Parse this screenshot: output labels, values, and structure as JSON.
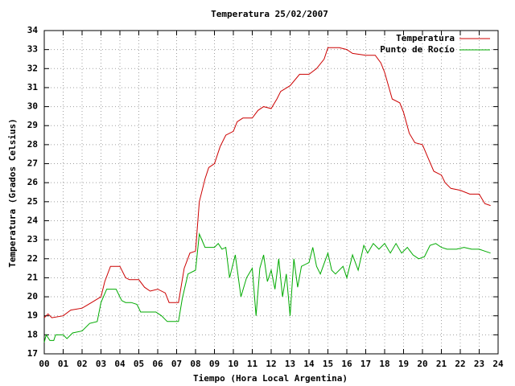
{
  "chart_data": {
    "type": "line",
    "title": "Temperatura 25/02/2007",
    "x_label": "Tiempo (Hora Local Argentina)",
    "y_label": "Temperatura (Grados Celsius)",
    "xlim": [
      0,
      24
    ],
    "ylim": [
      17,
      34
    ],
    "xticks": [
      {
        "value": 0,
        "label": "00"
      },
      {
        "value": 1,
        "label": "01"
      },
      {
        "value": 2,
        "label": "02"
      },
      {
        "value": 3,
        "label": "03"
      },
      {
        "value": 4,
        "label": "04"
      },
      {
        "value": 5,
        "label": "05"
      },
      {
        "value": 6,
        "label": "06"
      },
      {
        "value": 7,
        "label": "07"
      },
      {
        "value": 8,
        "label": "08"
      },
      {
        "value": 9,
        "label": "09"
      },
      10,
      11,
      12,
      13,
      14,
      15,
      16,
      17,
      18,
      19,
      20,
      21,
      22,
      23,
      24
    ],
    "yticks": [
      17,
      18,
      19,
      20,
      21,
      22,
      23,
      24,
      25,
      26,
      27,
      28,
      29,
      30,
      31,
      32,
      33,
      34
    ],
    "grid": true,
    "legend": "top-right",
    "series": [
      {
        "name": "Temperatura",
        "color": "#cc0000",
        "x": [
          0,
          0.2,
          0.4,
          1.0,
          1.4,
          2.0,
          2.5,
          3.0,
          3.2,
          3.5,
          4.0,
          4.3,
          4.5,
          5.0,
          5.3,
          5.6,
          6.0,
          6.4,
          6.6,
          7.1,
          7.4,
          7.7,
          8.0,
          8.2,
          8.5,
          8.7,
          9.0,
          9.3,
          9.6,
          10.0,
          10.2,
          10.5,
          11.0,
          11.3,
          11.6,
          12.0,
          12.3,
          12.5,
          13.0,
          13.5,
          14.0,
          14.4,
          14.8,
          15.0,
          15.3,
          15.6,
          16.0,
          16.3,
          17.0,
          17.5,
          17.8,
          18.0,
          18.4,
          18.8,
          19.0,
          19.3,
          19.6,
          20.0,
          20.3,
          20.6,
          21.0,
          21.2,
          21.5,
          22.0,
          22.5,
          23.0,
          23.3,
          23.6
        ],
        "values": [
          18.9,
          19.1,
          18.9,
          19.0,
          19.3,
          19.4,
          19.7,
          20.0,
          20.8,
          21.6,
          21.6,
          21.0,
          20.9,
          20.9,
          20.5,
          20.3,
          20.4,
          20.2,
          19.7,
          19.7,
          21.5,
          22.3,
          22.4,
          25.0,
          26.2,
          26.8,
          27.0,
          27.9,
          28.5,
          28.7,
          29.2,
          29.4,
          29.4,
          29.8,
          30.0,
          29.9,
          30.4,
          30.8,
          31.1,
          31.7,
          31.7,
          32.0,
          32.5,
          33.1,
          33.1,
          33.1,
          33.0,
          32.8,
          32.7,
          32.7,
          32.3,
          31.8,
          30.4,
          30.2,
          29.7,
          28.6,
          28.1,
          28.0,
          27.3,
          26.6,
          26.4,
          26.0,
          25.7,
          25.6,
          25.4,
          25.4,
          24.9,
          24.8
        ]
      },
      {
        "name": "Punto de Rocío",
        "color": "#00aa00",
        "x": [
          0,
          0.1,
          0.3,
          0.5,
          0.6,
          1.0,
          1.2,
          1.5,
          2.0,
          2.4,
          2.8,
          3.0,
          3.3,
          3.8,
          4.1,
          4.3,
          4.6,
          4.9,
          5.1,
          5.5,
          5.9,
          6.2,
          6.5,
          7.1,
          7.3,
          7.6,
          8.0,
          8.2,
          8.5,
          9.0,
          9.2,
          9.4,
          9.6,
          9.8,
          10.1,
          10.4,
          10.7,
          11.0,
          11.2,
          11.4,
          11.6,
          11.8,
          12.0,
          12.2,
          12.4,
          12.6,
          12.8,
          13.0,
          13.2,
          13.4,
          13.6,
          14.0,
          14.2,
          14.4,
          14.6,
          15.0,
          15.2,
          15.4,
          15.8,
          16.0,
          16.3,
          16.6,
          16.9,
          17.1,
          17.4,
          17.7,
          18.0,
          18.3,
          18.6,
          18.9,
          19.2,
          19.5,
          19.8,
          20.1,
          20.4,
          20.7,
          21.0,
          21.3,
          21.8,
          22.2,
          22.6,
          23.0,
          23.3,
          23.6
        ],
        "values": [
          17.6,
          18.0,
          17.7,
          17.7,
          18.0,
          18.0,
          17.8,
          18.1,
          18.2,
          18.6,
          18.7,
          19.7,
          20.4,
          20.4,
          19.8,
          19.7,
          19.7,
          19.6,
          19.2,
          19.2,
          19.2,
          19.0,
          18.7,
          18.7,
          19.9,
          21.2,
          21.4,
          23.3,
          22.6,
          22.6,
          22.8,
          22.5,
          22.6,
          21.0,
          22.2,
          20.0,
          21.0,
          21.5,
          19.0,
          21.5,
          22.2,
          20.8,
          21.4,
          20.4,
          22.0,
          20.0,
          21.2,
          19.0,
          22.0,
          20.5,
          21.6,
          21.8,
          22.6,
          21.6,
          21.2,
          22.3,
          21.4,
          21.2,
          21.6,
          21.0,
          22.2,
          21.4,
          22.7,
          22.3,
          22.8,
          22.5,
          22.8,
          22.3,
          22.8,
          22.3,
          22.6,
          22.2,
          22.0,
          22.1,
          22.7,
          22.8,
          22.6,
          22.5,
          22.5,
          22.6,
          22.5,
          22.5,
          22.4,
          22.3
        ]
      }
    ]
  }
}
